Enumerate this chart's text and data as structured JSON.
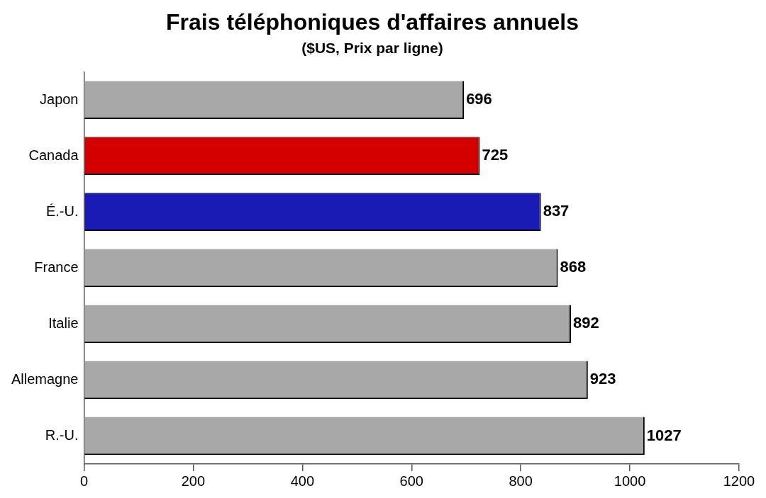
{
  "chart_data": {
    "type": "bar",
    "orientation": "horizontal",
    "title": "Frais téléphoniques d'affaires annuels",
    "subtitle": "($US, Prix par ligne)",
    "categories": [
      "Japon",
      "Canada",
      "É.-U.",
      "France",
      "Italie",
      "Allemagne",
      "R.-U."
    ],
    "values": [
      696,
      725,
      837,
      868,
      892,
      923,
      1027
    ],
    "colors": [
      "#a8a8a8",
      "#d40000",
      "#1a1ab4",
      "#a8a8a8",
      "#a8a8a8",
      "#a8a8a8",
      "#a8a8a8"
    ],
    "xlim": [
      0,
      1200
    ],
    "xticks": [
      0,
      200,
      400,
      600,
      800,
      1000,
      1200
    ],
    "grid": false,
    "legend": false,
    "data_labels": true
  }
}
